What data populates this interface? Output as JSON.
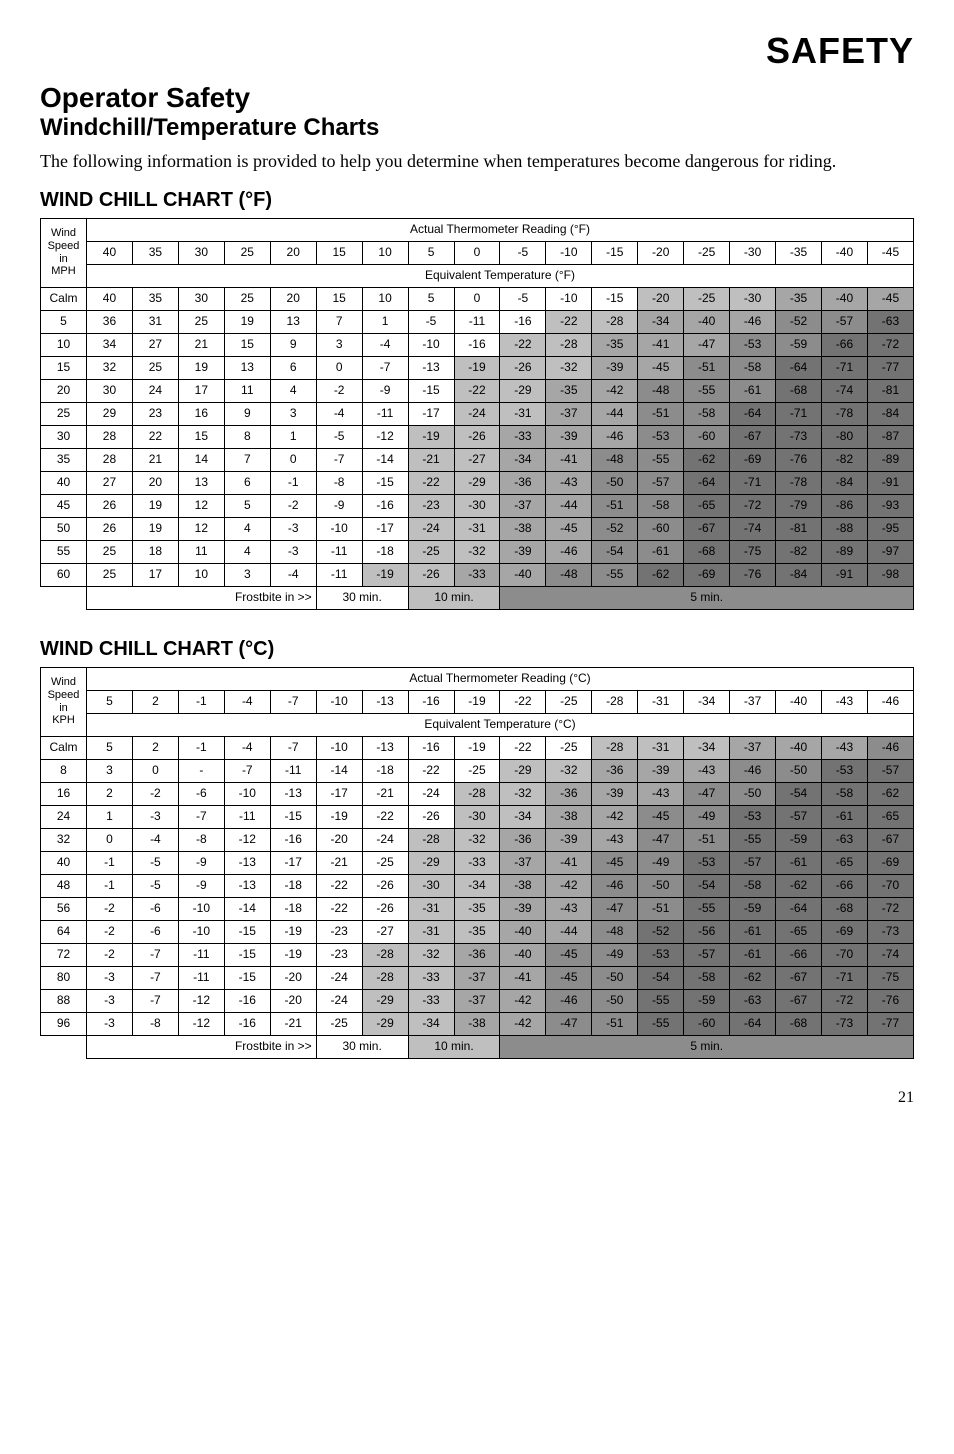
{
  "page_title": "SAFETY",
  "section_title": "Operator Safety",
  "subsection_title": "Windchill/Temperature Charts",
  "body_text": "The following information is provided to help you determine when temperatures become dangerous for riding.",
  "page_number": "21",
  "colors": {
    "shade_light": "#d9d9d9",
    "shade_mid": "#bfbfbf",
    "shade_dark": "#a6a6a6",
    "shade_darker": "#8c8c8c",
    "shade_darkest": "#737373",
    "border": "#000000",
    "bg": "#ffffff"
  },
  "chart_f": {
    "title": "WIND CHILL CHART (°F)",
    "top_header": "Actual Thermometer Reading (°F)",
    "mid_header": "Equivalent Temperature (°F)",
    "left_header": "Wind Speed in MPH",
    "columns": [
      40,
      35,
      30,
      25,
      20,
      15,
      10,
      5,
      0,
      -5,
      -10,
      -15,
      -20,
      -25,
      -30,
      -35,
      -40,
      -45
    ],
    "rows": [
      {
        "label": "Calm",
        "vals": [
          40,
          35,
          30,
          25,
          20,
          15,
          10,
          5,
          0,
          -5,
          -10,
          -15,
          -20,
          -25,
          -30,
          -35,
          -40,
          -45
        ]
      },
      {
        "label": "5",
        "vals": [
          36,
          31,
          25,
          19,
          13,
          7,
          1,
          -5,
          -11,
          -16,
          -22,
          -28,
          -34,
          -40,
          -46,
          -52,
          -57,
          -63
        ]
      },
      {
        "label": "10",
        "vals": [
          34,
          27,
          21,
          15,
          9,
          3,
          -4,
          -10,
          -16,
          -22,
          -28,
          -35,
          -41,
          -47,
          -53,
          -59,
          -66,
          -72
        ]
      },
      {
        "label": "15",
        "vals": [
          32,
          25,
          19,
          13,
          6,
          0,
          -7,
          -13,
          -19,
          -26,
          -32,
          -39,
          -45,
          -51,
          -58,
          -64,
          -71,
          -77
        ]
      },
      {
        "label": "20",
        "vals": [
          30,
          24,
          17,
          11,
          4,
          -2,
          -9,
          -15,
          -22,
          -29,
          -35,
          -42,
          -48,
          -55,
          -61,
          -68,
          -74,
          -81
        ]
      },
      {
        "label": "25",
        "vals": [
          29,
          23,
          16,
          9,
          3,
          -4,
          -11,
          -17,
          -24,
          -31,
          -37,
          -44,
          -51,
          -58,
          -64,
          -71,
          -78,
          -84
        ]
      },
      {
        "label": "30",
        "vals": [
          28,
          22,
          15,
          8,
          1,
          -5,
          -12,
          -19,
          -26,
          -33,
          -39,
          -46,
          -53,
          -60,
          -67,
          -73,
          -80,
          -87
        ]
      },
      {
        "label": "35",
        "vals": [
          28,
          21,
          14,
          7,
          0,
          -7,
          -14,
          -21,
          -27,
          -34,
          -41,
          -48,
          -55,
          -62,
          -69,
          -76,
          -82,
          -89
        ]
      },
      {
        "label": "40",
        "vals": [
          27,
          20,
          13,
          6,
          -1,
          -8,
          -15,
          -22,
          -29,
          -36,
          -43,
          -50,
          -57,
          -64,
          -71,
          -78,
          -84,
          -91
        ]
      },
      {
        "label": "45",
        "vals": [
          26,
          19,
          12,
          5,
          -2,
          -9,
          -16,
          -23,
          -30,
          -37,
          -44,
          -51,
          -58,
          -65,
          -72,
          -79,
          -86,
          -93
        ]
      },
      {
        "label": "50",
        "vals": [
          26,
          19,
          12,
          4,
          -3,
          -10,
          -17,
          -24,
          -31,
          -38,
          -45,
          -52,
          -60,
          -67,
          -74,
          -81,
          -88,
          -95
        ]
      },
      {
        "label": "55",
        "vals": [
          25,
          18,
          11,
          4,
          -3,
          -11,
          -18,
          -25,
          -32,
          -39,
          -46,
          -54,
          -61,
          -68,
          -75,
          -82,
          -89,
          -97
        ]
      },
      {
        "label": "60",
        "vals": [
          25,
          17,
          10,
          3,
          -4,
          -11,
          -19,
          -26,
          -33,
          -40,
          -48,
          -55,
          -62,
          -69,
          -76,
          -84,
          -91,
          -98
        ]
      }
    ],
    "footer": {
      "frostbite": "Frostbite in >>",
      "t30": "30 min.",
      "t10": "10 min.",
      "t5": "5 min."
    },
    "shade_thresholds": {
      "light": -19,
      "mid": -33,
      "dark": -48,
      "darker": -62
    }
  },
  "chart_c": {
    "title": "WIND CHILL CHART (°C)",
    "top_header": "Actual Thermometer Reading (°C)",
    "mid_header": "Equivalent Temperature (°C)",
    "left_header": "Wind Speed in KPH",
    "columns": [
      5,
      2,
      -1,
      -4,
      -7,
      -10,
      -13,
      -16,
      -19,
      -22,
      -25,
      -28,
      -31,
      -34,
      -37,
      -40,
      -43,
      -46
    ],
    "rows": [
      {
        "label": "Calm",
        "vals": [
          5,
          2,
          -1,
          -4,
          -7,
          -10,
          -13,
          -16,
          -19,
          -22,
          -25,
          -28,
          -31,
          -34,
          -37,
          -40,
          -43,
          -46
        ]
      },
      {
        "label": "8",
        "vals": [
          3,
          0,
          "-",
          -7,
          -11,
          -14,
          -18,
          -22,
          -25,
          -29,
          -32,
          -36,
          -39,
          -43,
          -46,
          -50,
          -53,
          -57
        ]
      },
      {
        "label": "16",
        "vals": [
          2,
          -2,
          -6,
          -10,
          -13,
          -17,
          -21,
          -24,
          -28,
          -32,
          -36,
          -39,
          -43,
          -47,
          -50,
          -54,
          -58,
          -62
        ]
      },
      {
        "label": "24",
        "vals": [
          1,
          -3,
          -7,
          -11,
          -15,
          -19,
          -22,
          -26,
          -30,
          -34,
          -38,
          -42,
          -45,
          -49,
          -53,
          -57,
          -61,
          -65
        ]
      },
      {
        "label": "32",
        "vals": [
          0,
          -4,
          -8,
          -12,
          -16,
          -20,
          -24,
          -28,
          -32,
          -36,
          -39,
          -43,
          -47,
          -51,
          -55,
          -59,
          -63,
          -67
        ]
      },
      {
        "label": "40",
        "vals": [
          -1,
          -5,
          -9,
          -13,
          -17,
          -21,
          -25,
          -29,
          -33,
          -37,
          -41,
          -45,
          -49,
          -53,
          -57,
          -61,
          -65,
          -69
        ]
      },
      {
        "label": "48",
        "vals": [
          -1,
          -5,
          -9,
          -13,
          -18,
          -22,
          -26,
          -30,
          -34,
          -38,
          -42,
          -46,
          -50,
          -54,
          -58,
          -62,
          -66,
          -70
        ]
      },
      {
        "label": "56",
        "vals": [
          -2,
          -6,
          -10,
          -14,
          -18,
          -22,
          -26,
          -31,
          -35,
          -39,
          -43,
          -47,
          -51,
          -55,
          -59,
          -64,
          -68,
          -72
        ]
      },
      {
        "label": "64",
        "vals": [
          -2,
          -6,
          -10,
          -15,
          -19,
          -23,
          -27,
          -31,
          -35,
          -40,
          -44,
          -48,
          -52,
          -56,
          -61,
          -65,
          -69,
          -73
        ]
      },
      {
        "label": "72",
        "vals": [
          -2,
          -7,
          -11,
          -15,
          -19,
          -23,
          -28,
          -32,
          -36,
          -40,
          -45,
          -49,
          -53,
          -57,
          -61,
          -66,
          -70,
          -74
        ]
      },
      {
        "label": "80",
        "vals": [
          -3,
          -7,
          -11,
          -15,
          -20,
          -24,
          -28,
          -33,
          -37,
          -41,
          -45,
          -50,
          -54,
          -58,
          -62,
          -67,
          -71,
          -75
        ]
      },
      {
        "label": "88",
        "vals": [
          -3,
          -7,
          -12,
          -16,
          -20,
          -24,
          -29,
          -33,
          -37,
          -42,
          -46,
          -50,
          -55,
          -59,
          -63,
          -67,
          -72,
          -76
        ]
      },
      {
        "label": "96",
        "vals": [
          -3,
          -8,
          -12,
          -16,
          -21,
          -25,
          -29,
          -34,
          -38,
          -42,
          -47,
          -51,
          -55,
          -60,
          -64,
          -68,
          -73,
          -77
        ]
      }
    ],
    "footer": {
      "frostbite": "Frostbite in >>",
      "t30": "30 min.",
      "t10": "10 min.",
      "t5": "5 min."
    },
    "shade_thresholds": {
      "light": -28,
      "mid": -36,
      "dark": -45,
      "darker": -52
    }
  }
}
